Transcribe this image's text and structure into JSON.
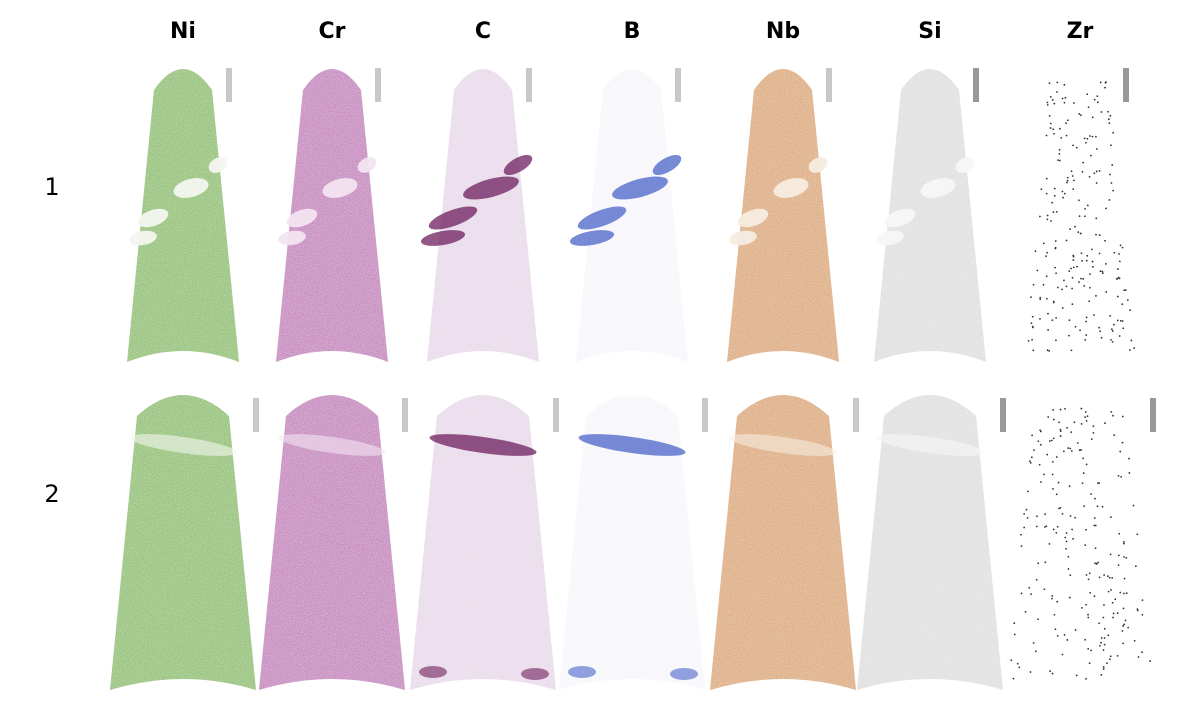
{
  "columns": [
    "Ni",
    "Cr",
    "C",
    "B",
    "Nb",
    "Si",
    "Zr"
  ],
  "rows": [
    "1",
    "2"
  ]
}
